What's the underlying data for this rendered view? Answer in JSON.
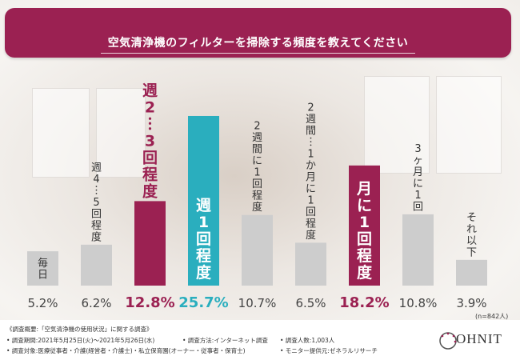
{
  "chart_data": {
    "type": "bar",
    "title": "空気清浄機のフィルターを掃除する頻度を教えてください",
    "categories": [
      "毎日",
      "週4〜5回程度",
      "週2〜3回程度",
      "週1回程度",
      "2週間に1回程度",
      "2週間〜1か月に1回程度",
      "月に1回程度",
      "3ヶ月に1回",
      "それ以下"
    ],
    "values": [
      5.2,
      6.2,
      12.8,
      25.7,
      10.7,
      6.5,
      18.2,
      10.8,
      3.9
    ],
    "value_labels": [
      "5.2%",
      "6.2%",
      "12.8%",
      "25.7%",
      "10.7%",
      "6.5%",
      "18.2%",
      "10.8%",
      "3.9%"
    ],
    "highlight": [
      "none",
      "none",
      "magenta",
      "teal",
      "none",
      "none",
      "magenta",
      "none",
      "none"
    ],
    "colors": {
      "base": "#cdcdcd",
      "magenta": "#9b2152",
      "teal": "#2aaebe",
      "base_text": "#333333",
      "hi_text": "#ffffff"
    },
    "sample_note": "(n=842人)",
    "xlabel": "",
    "ylabel": "",
    "ylim": [
      0,
      30
    ]
  },
  "footer": {
    "overview": "《調査概要:「空気清浄機の使用状況」に関する調査》",
    "period": "• 調査期間:2021年5月25日(火)〜2021年5月26日(水)",
    "method": "• 調査方法:インターネット調査",
    "count": "• 調査人数:1,003人",
    "target": "• 調査対象:医療従事者・介護(経営者・介護士)・私立保育園(オーナー・従事者・保育士)",
    "provider": "• モニター提供元:ゼネラルリサーチ",
    "logo": "OHNIT"
  }
}
